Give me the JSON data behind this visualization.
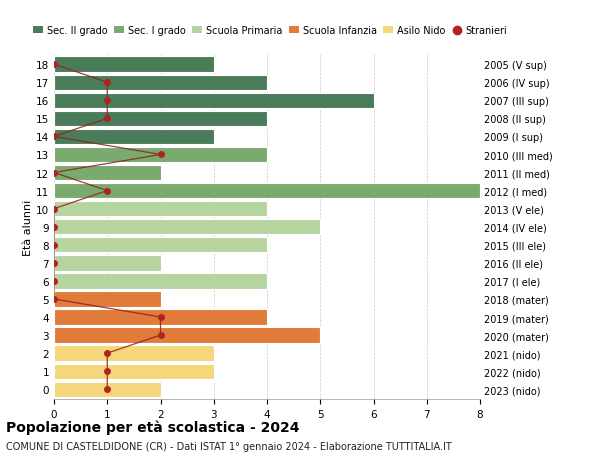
{
  "ages": [
    18,
    17,
    16,
    15,
    14,
    13,
    12,
    11,
    10,
    9,
    8,
    7,
    6,
    5,
    4,
    3,
    2,
    1,
    0
  ],
  "right_labels": [
    "2005 (V sup)",
    "2006 (IV sup)",
    "2007 (III sup)",
    "2008 (II sup)",
    "2009 (I sup)",
    "2010 (III med)",
    "2011 (II med)",
    "2012 (I med)",
    "2013 (V ele)",
    "2014 (IV ele)",
    "2015 (III ele)",
    "2016 (II ele)",
    "2017 (I ele)",
    "2018 (mater)",
    "2019 (mater)",
    "2020 (mater)",
    "2021 (nido)",
    "2022 (nido)",
    "2023 (nido)"
  ],
  "bar_values": [
    3,
    4,
    6,
    4,
    3,
    4,
    2,
    8,
    4,
    5,
    4,
    2,
    4,
    2,
    4,
    5,
    3,
    3,
    2
  ],
  "bar_colors": [
    "#4a7c59",
    "#4a7c59",
    "#4a7c59",
    "#4a7c59",
    "#4a7c59",
    "#7aab6e",
    "#7aab6e",
    "#7aab6e",
    "#b5d4a0",
    "#b5d4a0",
    "#b5d4a0",
    "#b5d4a0",
    "#b5d4a0",
    "#e07b3a",
    "#e07b3a",
    "#e07b3a",
    "#f5d67a",
    "#f5d67a",
    "#f5d67a"
  ],
  "stranieri_values": [
    0,
    1,
    1,
    1,
    0,
    2,
    0,
    1,
    0,
    0,
    0,
    0,
    0,
    0,
    2,
    2,
    1,
    1,
    1
  ],
  "legend_labels": [
    "Sec. II grado",
    "Sec. I grado",
    "Scuola Primaria",
    "Scuola Infanzia",
    "Asilo Nido",
    "Stranieri"
  ],
  "legend_colors": [
    "#4a7c59",
    "#7aab6e",
    "#b5d4a0",
    "#e07b3a",
    "#f5d67a",
    "#b22222"
  ],
  "title": "Popolazione per età scolastica - 2024",
  "subtitle": "COMUNE DI CASTELDIDONE (CR) - Dati ISTAT 1° gennaio 2024 - Elaborazione TUTTITALIA.IT",
  "ylabel_left": "Età alunni",
  "xlim": [
    0,
    8
  ],
  "bar_height": 0.85,
  "background_color": "#ffffff",
  "grid_color": "#cccccc"
}
